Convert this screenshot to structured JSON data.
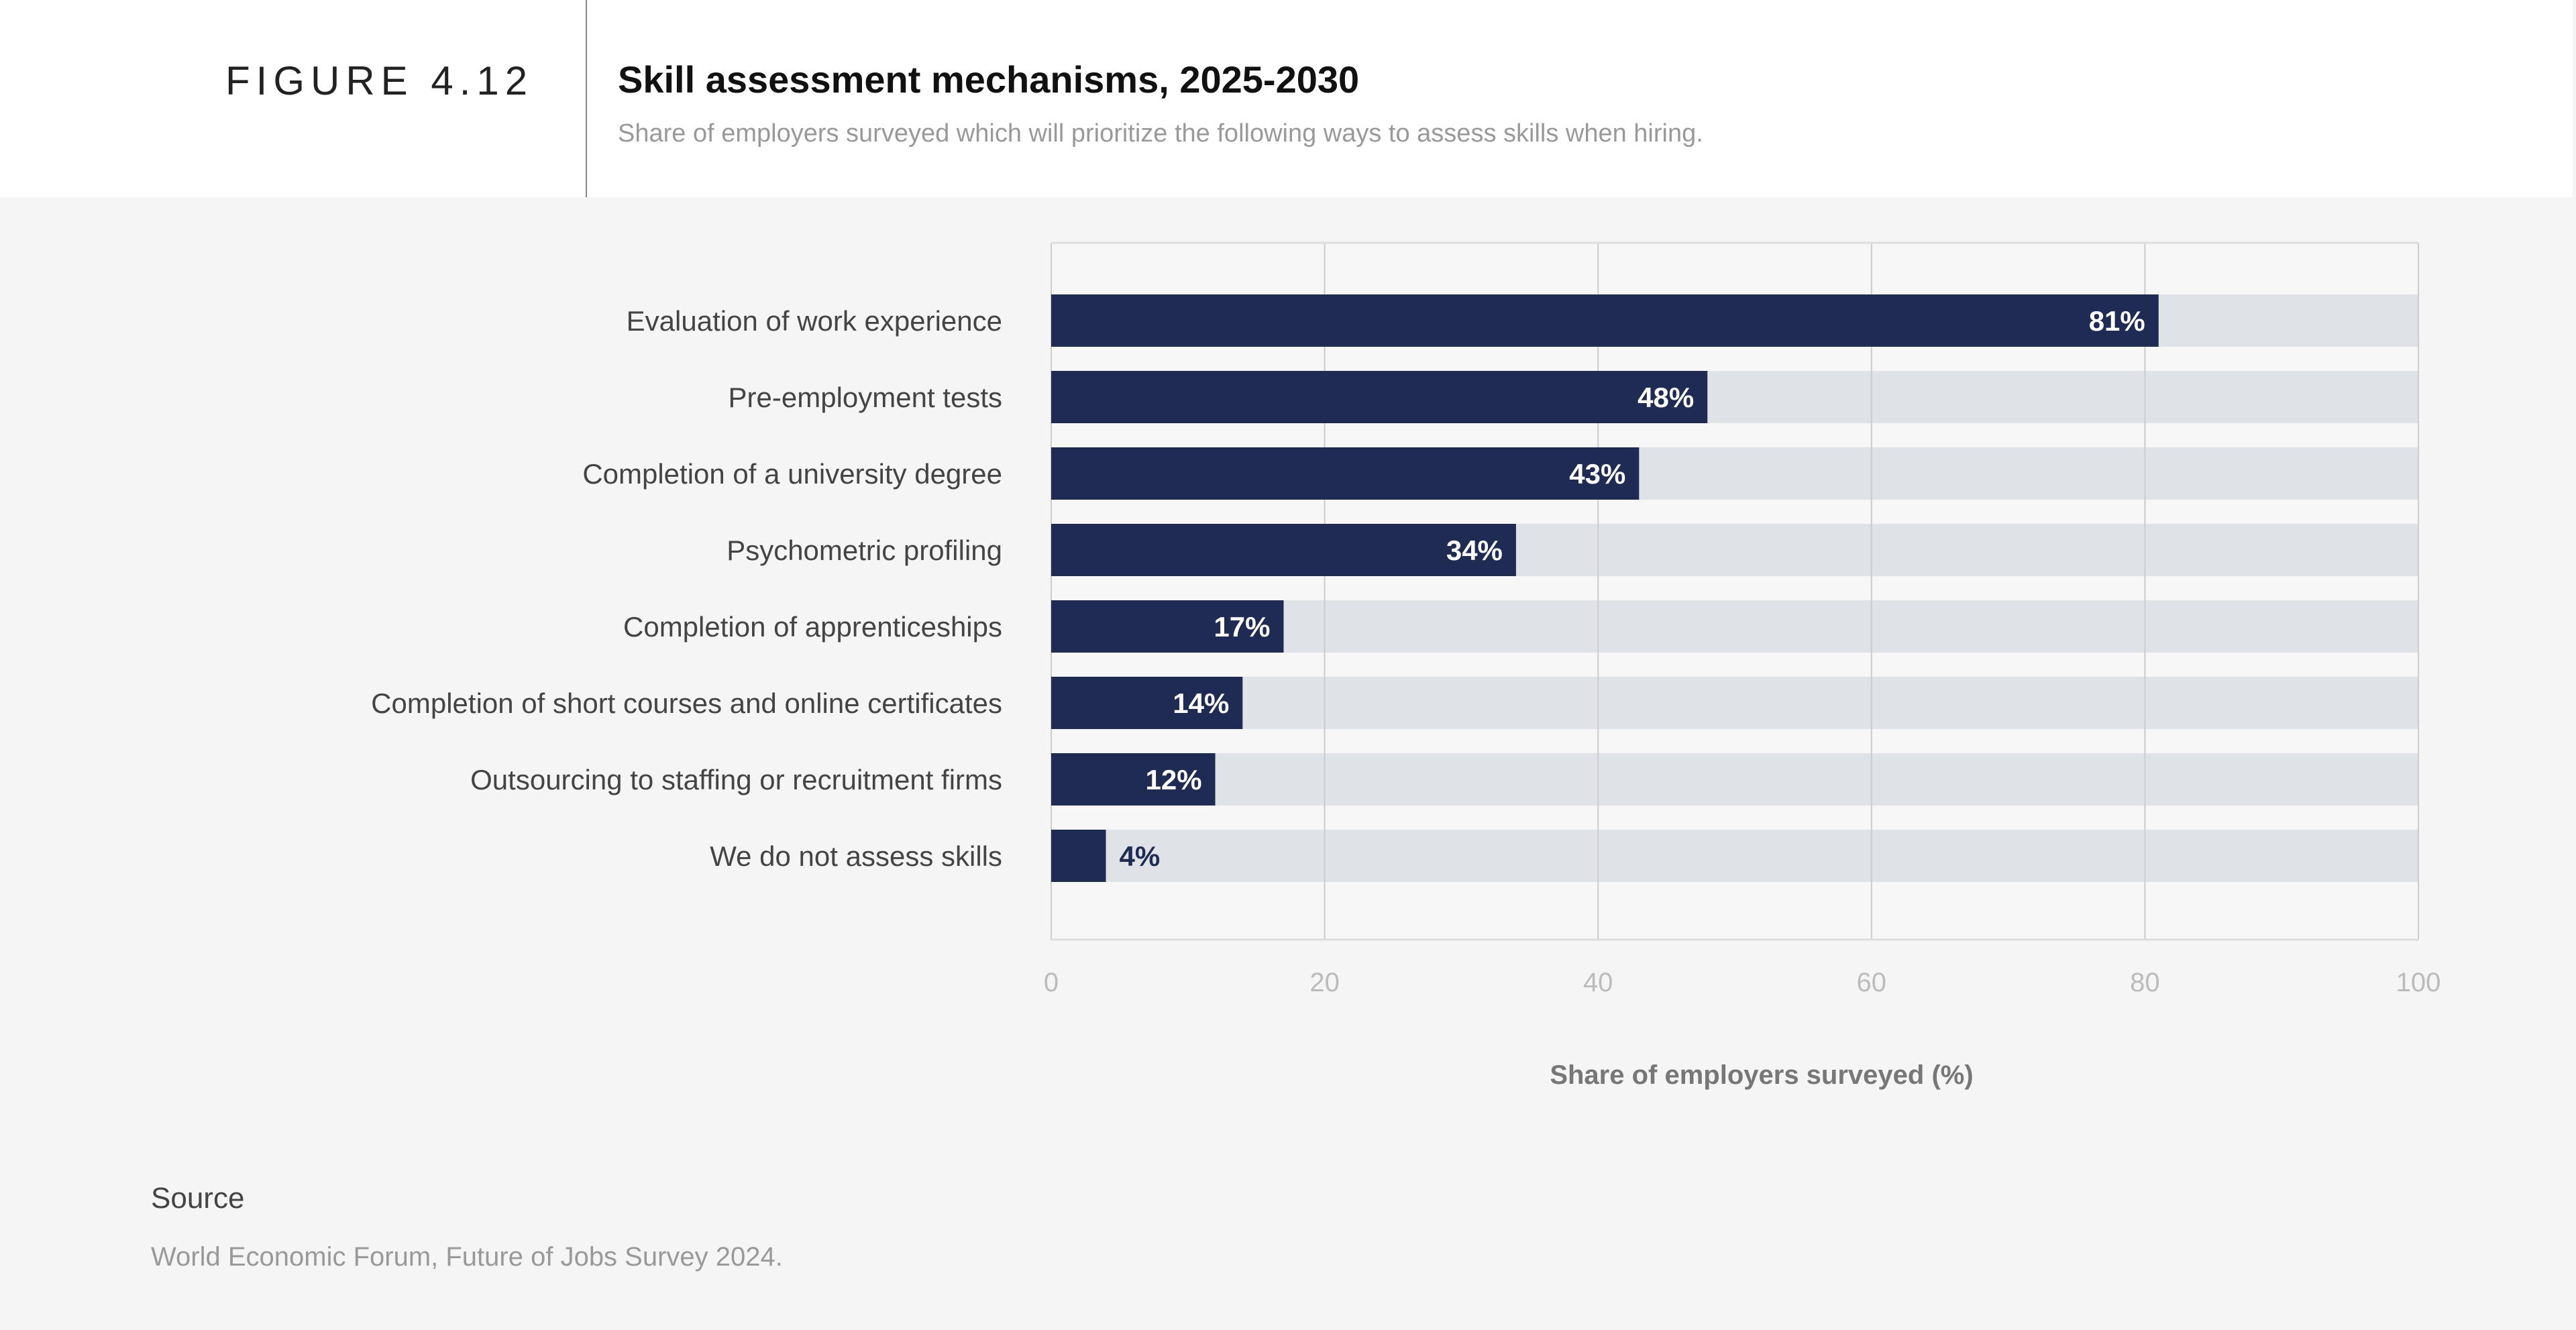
{
  "header": {
    "figure_label": "FIGURE 4.12",
    "title": "Skill assessment mechanisms, 2025-2030",
    "subtitle": "Share of employers surveyed which will prioritize the following ways to assess skills when hiring."
  },
  "footer": {
    "source_label": "Source",
    "source_text": "World Economic Forum, Future of Jobs Survey 2024."
  },
  "chart_data": {
    "type": "bar",
    "orientation": "horizontal",
    "categories": [
      "Evaluation of work experience",
      "Pre-employment tests",
      "Completion of a university degree",
      "Psychometric profiling",
      "Completion of apprenticeships",
      "Completion of short courses and online certificates",
      "Outsourcing to staffing or recruitment firms",
      "We do not assess skills"
    ],
    "values": [
      81,
      48,
      43,
      34,
      17,
      14,
      12,
      4
    ],
    "data_labels": [
      "81%",
      "48%",
      "43%",
      "34%",
      "17%",
      "14%",
      "12%",
      "4%"
    ],
    "xlabel": "Share of employers surveyed (%)",
    "xlim": [
      0,
      100
    ],
    "xticks": [
      0,
      20,
      40,
      60,
      80,
      100
    ],
    "grid": true,
    "colors": {
      "bar": "#1f2b52",
      "track": "#dfe2e6",
      "grid": "#cccccc"
    }
  }
}
